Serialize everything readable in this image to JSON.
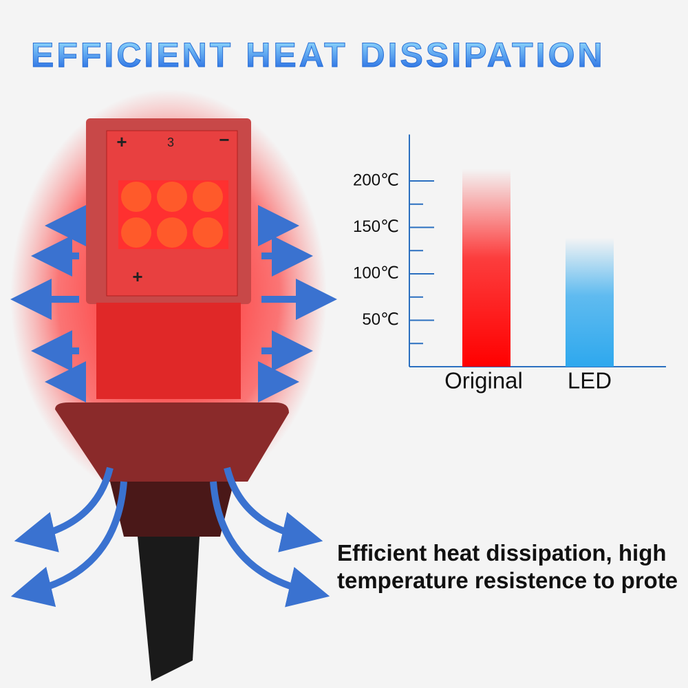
{
  "header": {
    "title": "EFFICIENT HEAT DISSIPATION"
  },
  "bulb": {
    "labels": [
      "+",
      "3",
      "−",
      "+"
    ]
  },
  "caption": {
    "lines": [
      "Efficient heat dissipation, high",
      "temperature resistence to prote"
    ]
  },
  "chart_data": {
    "type": "bar",
    "categories": [
      "Original",
      "LED"
    ],
    "values": [
      213,
      139
    ],
    "colors": [
      "#ff0000",
      "#2ea8ee"
    ],
    "ylim": [
      0,
      250
    ],
    "yticks": [
      {
        "value": 50,
        "label": "50℃"
      },
      {
        "value": 100,
        "label": "100℃"
      },
      {
        "value": 150,
        "label": "150℃"
      },
      {
        "value": 200,
        "label": "200℃"
      }
    ],
    "minor_yticks": [
      25,
      75,
      125,
      175
    ]
  }
}
